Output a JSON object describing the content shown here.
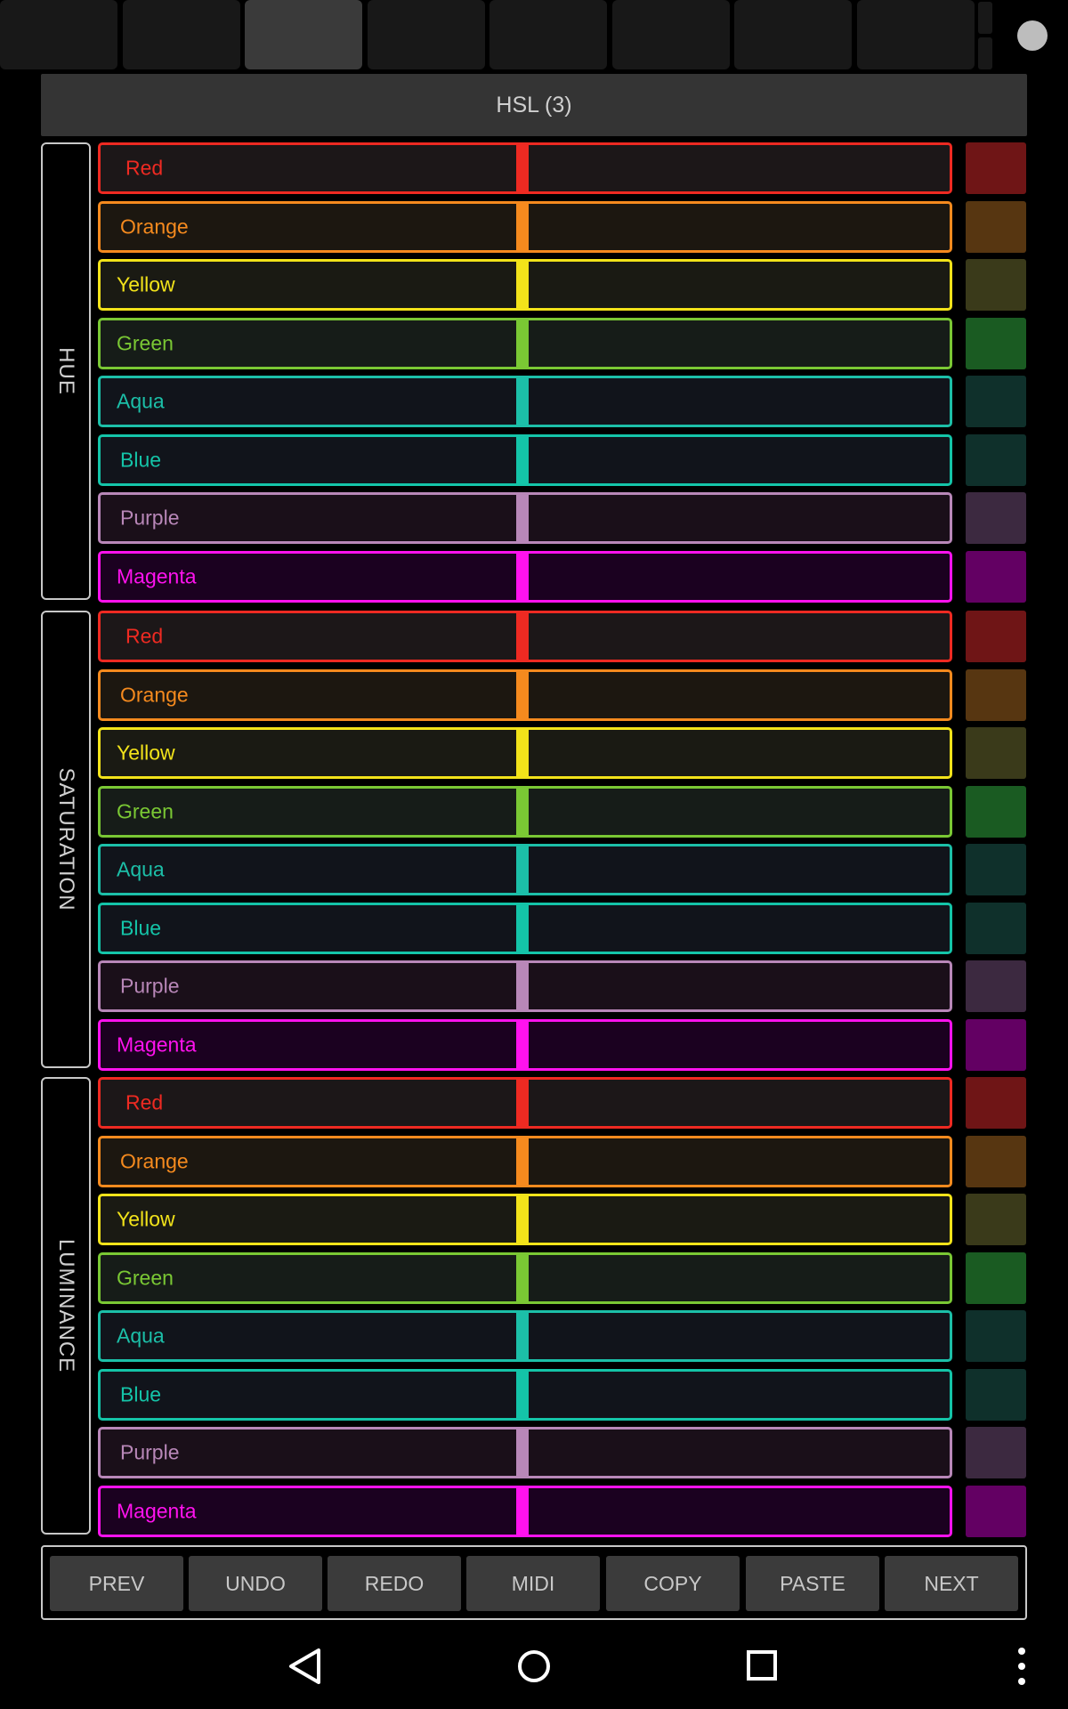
{
  "header": {
    "title": "HSL (3)"
  },
  "groups": [
    {
      "label": "HUE"
    },
    {
      "label": "SATURATION"
    },
    {
      "label": "LUMINANCE"
    }
  ],
  "channels": [
    {
      "label": "Red",
      "color": "#ee2a22",
      "bg": "#1c1718",
      "swatch": "#6f1516"
    },
    {
      "label": "Orange",
      "color": "#f58a1e",
      "bg": "#1c1710",
      "swatch": "#573611"
    },
    {
      "label": "Yellow",
      "color": "#f2e31a",
      "bg": "#1a1a13",
      "swatch": "#3a3a1a"
    },
    {
      "label": "Green",
      "color": "#7ac834",
      "bg": "#161c18",
      "swatch": "#1a5b22"
    },
    {
      "label": "Aqua",
      "color": "#1cbfa8",
      "bg": "#11141b",
      "swatch": "#0f302b"
    },
    {
      "label": "Blue",
      "color": "#14c4a8",
      "bg": "#11141b",
      "swatch": "#0f302b"
    },
    {
      "label": "Purple",
      "color": "#b887b8",
      "bg": "#1a0f19",
      "swatch": "#3c2940"
    },
    {
      "label": "Magenta",
      "color": "#ff12ee",
      "bg": "#1b0120",
      "swatch": "#630063"
    }
  ],
  "slider_value": 0.5,
  "buttons": [
    "PREV",
    "UNDO",
    "REDO",
    "MIDI",
    "COPY",
    "PASTE",
    "NEXT"
  ],
  "icons": {
    "nav_back": "back-triangle-icon",
    "nav_home": "home-circle-icon",
    "nav_recents": "recents-square-icon",
    "nav_menu": "menu-dots-icon",
    "status_dot": "circle-indicator-icon"
  }
}
